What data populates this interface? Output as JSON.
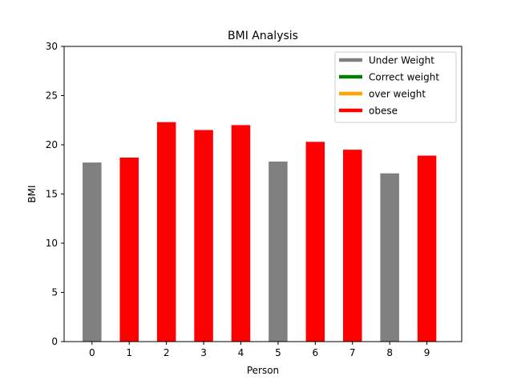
{
  "chart_data": {
    "type": "bar",
    "title": "BMI Analysis",
    "xlabel": "Person",
    "ylabel": "BMI",
    "categories": [
      "0",
      "1",
      "2",
      "3",
      "4",
      "5",
      "6",
      "7",
      "8",
      "9"
    ],
    "values": [
      18.2,
      18.7,
      22.3,
      21.5,
      22.0,
      18.3,
      20.3,
      19.5,
      17.1,
      18.9
    ],
    "bar_classes": [
      "Under Weight",
      "obese",
      "obese",
      "obese",
      "obese",
      "Under Weight",
      "obese",
      "obese",
      "Under Weight",
      "obese"
    ],
    "ylim": [
      0,
      30
    ],
    "yticks": [
      0,
      5,
      10,
      15,
      20,
      25,
      30
    ],
    "grid": false,
    "legend_position": "upper right",
    "legend": [
      {
        "label": "Under Weight",
        "color": "#808080"
      },
      {
        "label": "Correct weight",
        "color": "#008000"
      },
      {
        "label": "over weight",
        "color": "#FFA500"
      },
      {
        "label": "obese",
        "color": "#FF0000"
      }
    ]
  }
}
